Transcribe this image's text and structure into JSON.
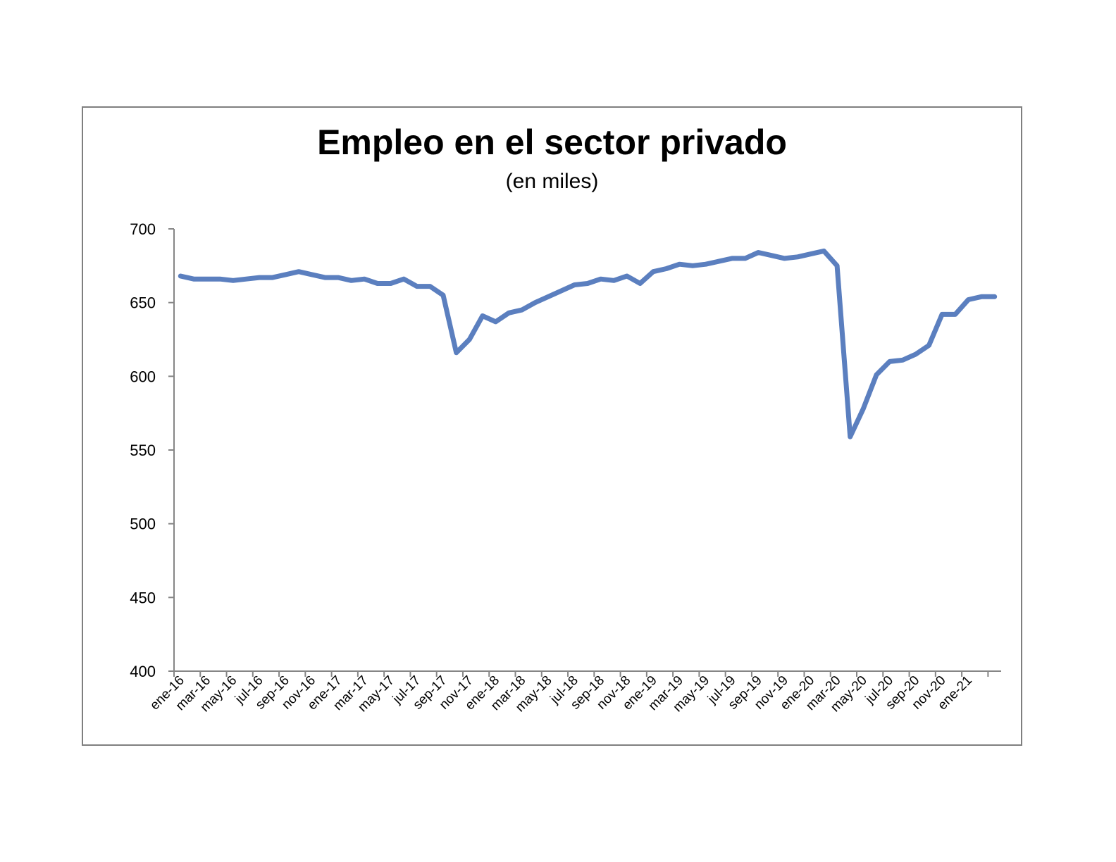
{
  "chart_data": {
    "type": "line",
    "title": "Empleo en el sector privado",
    "subtitle": "(en miles)",
    "xlabel": "",
    "ylabel": "",
    "ylim": [
      400,
      700
    ],
    "yticks": [
      400,
      450,
      500,
      550,
      600,
      650,
      700
    ],
    "xtick_labels": [
      "ene-16",
      "mar-16",
      "may-16",
      "jul-16",
      "sep-16",
      "nov-16",
      "ene-17",
      "mar-17",
      "may-17",
      "jul-17",
      "sep-17",
      "nov-17",
      "ene-18",
      "mar-18",
      "may-18",
      "jul-18",
      "sep-18",
      "nov-18",
      "ene-19",
      "mar-19",
      "may-19",
      "jul-19",
      "sep-19",
      "nov-19",
      "ene-20",
      "mar-20",
      "may-20",
      "jul-20",
      "sep-20",
      "nov-20",
      "ene-21"
    ],
    "grid": false,
    "legend": "none",
    "line_color": "#5b7fbf",
    "series": [
      {
        "x": [
          "ene-16",
          "feb-16",
          "mar-16",
          "abr-16",
          "may-16",
          "jun-16",
          "jul-16",
          "ago-16",
          "sep-16",
          "oct-16",
          "nov-16",
          "dic-16",
          "ene-17",
          "feb-17",
          "mar-17",
          "abr-17",
          "may-17",
          "jun-17",
          "jul-17",
          "ago-17",
          "sep-17",
          "oct-17",
          "nov-17",
          "dic-17",
          "ene-18",
          "feb-18",
          "mar-18",
          "abr-18",
          "may-18",
          "jun-18",
          "jul-18",
          "ago-18",
          "sep-18",
          "oct-18",
          "nov-18",
          "dic-18",
          "ene-19",
          "feb-19",
          "mar-19",
          "abr-19",
          "may-19",
          "jun-19",
          "jul-19",
          "ago-19",
          "sep-19",
          "oct-19",
          "nov-19",
          "dic-19",
          "ene-20",
          "feb-20",
          "mar-20",
          "abr-20",
          "may-20",
          "jun-20",
          "jul-20",
          "ago-20",
          "sep-20",
          "oct-20",
          "nov-20",
          "dic-20",
          "ene-21",
          "feb-21",
          "mar-21"
        ],
        "values": [
          668,
          666,
          666,
          666,
          665,
          666,
          667,
          667,
          669,
          671,
          669,
          667,
          667,
          665,
          666,
          663,
          663,
          666,
          661,
          661,
          655,
          616,
          625,
          641,
          637,
          643,
          645,
          650,
          654,
          658,
          662,
          663,
          666,
          665,
          668,
          663,
          671,
          673,
          676,
          675,
          676,
          678,
          680,
          680,
          684,
          682,
          680,
          681,
          683,
          685,
          675,
          559,
          578,
          601,
          610,
          611,
          615,
          621,
          642,
          642,
          652,
          654,
          654
        ]
      }
    ]
  }
}
